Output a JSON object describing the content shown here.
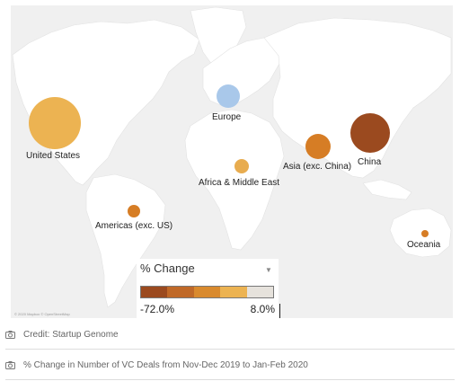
{
  "map": {
    "attribution": "© 2020 Mapbox © OpenStreetMap",
    "colors": {
      "ocean": "#f0f0f0",
      "land": "#ffffff"
    },
    "bubbles": [
      {
        "name": "United States",
        "color": "#ecb352"
      },
      {
        "name": "Europe",
        "color": "#a9c8ea"
      },
      {
        "name": "China",
        "color": "#9b4a1f"
      },
      {
        "name": "Asia (exc. China)",
        "color": "#d67d25"
      },
      {
        "name": "Africa & Middle East",
        "color": "#e8ac4f"
      },
      {
        "name": "Americas (exc. US)",
        "color": "#d67d25"
      },
      {
        "name": "Oceania",
        "color": "#d67d25"
      }
    ]
  },
  "legend": {
    "title": "% Change",
    "min_label": "-72.0%",
    "max_label": "8.0%",
    "swatches": [
      "#9b4a1f",
      "#c06928",
      "#d98a2e",
      "#ecb352",
      "#e6e2dc"
    ]
  },
  "captions": {
    "credit": "Credit: Startup Genome",
    "description": "% Change in Number of VC Deals from Nov-Dec 2019 to Jan-Feb 2020"
  },
  "icons": {
    "caption_icon": "camera-icon",
    "dropdown_icon": "caret-down-icon"
  }
}
